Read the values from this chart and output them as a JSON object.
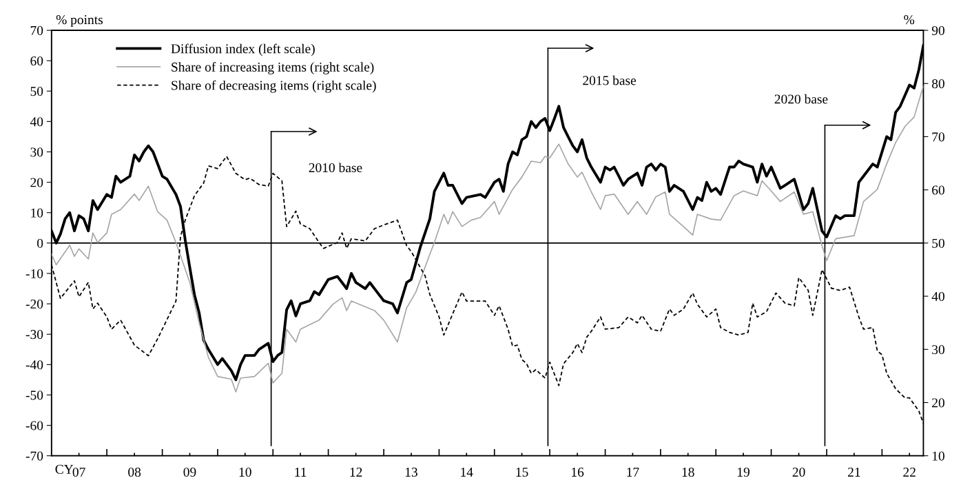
{
  "chart_data": {
    "type": "line",
    "xlabel": "CY",
    "ylabel": "% points",
    "y2label": "%",
    "xlim": [
      "2007-01",
      "2022-10"
    ],
    "xticks": [
      {
        "value": "2007-07",
        "label": "07"
      },
      {
        "value": "2008",
        "label": null
      },
      {
        "value": "2008-07",
        "label": "08"
      },
      {
        "value": "2009",
        "label": null
      },
      {
        "value": "2009-07",
        "label": "09"
      },
      {
        "value": "2010",
        "label": null
      },
      {
        "value": "2010-07",
        "label": "10"
      },
      {
        "value": "2011",
        "label": null
      },
      {
        "value": "2011-07",
        "label": "11"
      },
      {
        "value": "2012",
        "label": null
      },
      {
        "value": "2012-07",
        "label": "12"
      },
      {
        "value": "2013",
        "label": null
      },
      {
        "value": "2013-07",
        "label": "13"
      },
      {
        "value": "2014",
        "label": null
      },
      {
        "value": "2014-07",
        "label": "14"
      },
      {
        "value": "2015",
        "label": null
      },
      {
        "value": "2015-07",
        "label": "15"
      },
      {
        "value": "2016",
        "label": null
      },
      {
        "value": "2016-07",
        "label": "16"
      },
      {
        "value": "2017",
        "label": null
      },
      {
        "value": "2017-07",
        "label": "17"
      },
      {
        "value": "2018",
        "label": null
      },
      {
        "value": "2018-07",
        "label": "18"
      },
      {
        "value": "2019",
        "label": null
      },
      {
        "value": "2019-07",
        "label": "19"
      },
      {
        "value": "2020",
        "label": null
      },
      {
        "value": "2020-07",
        "label": "20"
      },
      {
        "value": "2021",
        "label": null
      },
      {
        "value": "2021-07",
        "label": "21"
      },
      {
        "value": "2022",
        "label": null
      },
      {
        "value": "2022-07",
        "label": "22"
      }
    ],
    "ylim": [
      -70,
      70
    ],
    "yticks": [
      -70,
      -60,
      -50,
      -40,
      -30,
      -20,
      -10,
      0,
      10,
      20,
      30,
      40,
      50,
      60,
      70
    ],
    "y2lim": [
      10,
      90
    ],
    "y2ticks": [
      10,
      20,
      30,
      40,
      50,
      60,
      70,
      80,
      90
    ],
    "legend": "top left",
    "ref_lines": [
      {
        "axis": "y",
        "value": 0,
        "label": null
      },
      {
        "axis": "x",
        "value": "2010-12-20",
        "label": "2010 base"
      },
      {
        "axis": "x",
        "value": "2015-12-20",
        "label": "2015 base"
      },
      {
        "axis": "x",
        "value": "2020-12-20",
        "label": "2020 base"
      }
    ],
    "series": [
      {
        "name": "Diffusion index (left scale)",
        "color": "#000000",
        "axis": "y",
        "line_style": "solid",
        "x": [
          "2007-01",
          "2007-02",
          "2007-03",
          "2007-04",
          "2007-05",
          "2007-06",
          "2007-07",
          "2007-08",
          "2007-09",
          "2007-10",
          "2007-11",
          "2008-01",
          "2008-02",
          "2008-03",
          "2008-04",
          "2008-06",
          "2008-07",
          "2008-08",
          "2008-09",
          "2008-10",
          "2008-11",
          "2009-01",
          "2009-02",
          "2009-04",
          "2009-05",
          "2009-06",
          "2009-07",
          "2009-08",
          "2009-09",
          "2009-10",
          "2009-11",
          "2010-01",
          "2010-02",
          "2010-04",
          "2010-05",
          "2010-06",
          "2010-07",
          "2010-09",
          "2010-10",
          "2010-12",
          "2011-01",
          "2011-02",
          "2011-03",
          "2011-04",
          "2011-05",
          "2011-06",
          "2011-07",
          "2011-09",
          "2011-10",
          "2011-11",
          "2012-01",
          "2012-03",
          "2012-04",
          "2012-05",
          "2012-06",
          "2012-07",
          "2012-09",
          "2012-10",
          "2012-12",
          "2013-01",
          "2013-03",
          "2013-04",
          "2013-06",
          "2013-07",
          "2013-09",
          "2013-11",
          "2013-12",
          "2014-02",
          "2014-03",
          "2014-04",
          "2014-06",
          "2014-07",
          "2014-10",
          "2014-11",
          "2015-01",
          "2015-02",
          "2015-03",
          "2015-04",
          "2015-05",
          "2015-06",
          "2015-07",
          "2015-08",
          "2015-09",
          "2015-10",
          "2015-11",
          "2015-12",
          "2016-01",
          "2016-02",
          "2016-03",
          "2016-04",
          "2016-05",
          "2016-06",
          "2016-07",
          "2016-08",
          "2016-09",
          "2016-10",
          "2016-12",
          "2017-01",
          "2017-02",
          "2017-03",
          "2017-04",
          "2017-05",
          "2017-06",
          "2017-08",
          "2017-09",
          "2017-10",
          "2017-11",
          "2017-12",
          "2018-01",
          "2018-02",
          "2018-03",
          "2018-04",
          "2018-06",
          "2018-08",
          "2018-09",
          "2018-10",
          "2018-11",
          "2018-12",
          "2019-01",
          "2019-02",
          "2019-04",
          "2019-05",
          "2019-06",
          "2019-07",
          "2019-09",
          "2019-10",
          "2019-11",
          "2019-12",
          "2020-01",
          "2020-03",
          "2020-04",
          "2020-06",
          "2020-08",
          "2020-09",
          "2020-10",
          "2020-12",
          "2021-01",
          "2021-03",
          "2021-04",
          "2021-05",
          "2021-07",
          "2021-08",
          "2021-09",
          "2021-11",
          "2021-12",
          "2022-02",
          "2022-03",
          "2022-04",
          "2022-05",
          "2022-07",
          "2022-08",
          "2022-09",
          "2022-10"
        ],
        "values": [
          4,
          0,
          3,
          8,
          10,
          4,
          9,
          8,
          4,
          14,
          11,
          16,
          15,
          22,
          20,
          22,
          29,
          27,
          30,
          32,
          30,
          22,
          21,
          16,
          12,
          1,
          -8,
          -17,
          -23,
          -32,
          -35,
          -40,
          -38,
          -42,
          -45,
          -40,
          -37,
          -37,
          -35,
          -33,
          -39,
          -37,
          -36,
          -22,
          -19,
          -24,
          -20,
          -19,
          -16,
          -17,
          -12,
          -11,
          -13,
          -15,
          -10,
          -13,
          -15,
          -13,
          -17,
          -19,
          -20,
          -23,
          -13,
          -12,
          -1,
          8,
          17,
          23,
          19,
          19,
          13,
          15,
          16,
          15,
          20,
          21,
          17,
          26,
          30,
          29,
          34,
          35,
          40,
          38,
          40,
          41,
          37,
          41,
          45,
          38,
          35,
          32,
          30,
          34,
          28,
          25,
          20,
          25,
          24,
          25,
          22,
          19,
          21,
          23,
          19,
          25,
          26,
          24,
          26,
          25,
          17,
          19,
          17,
          11,
          15,
          14,
          20,
          17,
          18,
          16,
          25,
          25,
          27,
          26,
          25,
          20,
          26,
          22,
          25,
          18,
          19,
          21,
          11,
          13,
          18,
          4,
          2,
          9,
          8,
          9,
          9,
          20,
          22,
          26,
          25,
          35,
          34,
          43,
          45,
          52,
          51,
          57,
          65
        ]
      },
      {
        "name": "Share of increasing items (right scale)",
        "color": "#a6a6a6",
        "axis": "y2",
        "line_style": "solid",
        "x": [
          "2007-01",
          "2007-02",
          "2007-05",
          "2007-06",
          "2007-07",
          "2007-09",
          "2007-10",
          "2007-11",
          "2008-01",
          "2008-02",
          "2008-04",
          "2008-07",
          "2008-08",
          "2008-10",
          "2008-12",
          "2009-02",
          "2009-04",
          "2009-07",
          "2009-09",
          "2009-11",
          "2010-01",
          "2010-04",
          "2010-05",
          "2010-06",
          "2010-09",
          "2010-12",
          "2011-01",
          "2011-03",
          "2011-04",
          "2011-06",
          "2011-07",
          "2011-11",
          "2012-02",
          "2012-04",
          "2012-05",
          "2012-06",
          "2012-11",
          "2013-01",
          "2013-04",
          "2013-06",
          "2013-08",
          "2013-11",
          "2013-12",
          "2014-02",
          "2014-03",
          "2014-04",
          "2014-06",
          "2014-08",
          "2014-10",
          "2015-01",
          "2015-02",
          "2015-05",
          "2015-07",
          "2015-09",
          "2015-11",
          "2015-12",
          "2016-01",
          "2016-03",
          "2016-05",
          "2016-07",
          "2016-08",
          "2016-10",
          "2016-12",
          "2017-01",
          "2017-03",
          "2017-06",
          "2017-08",
          "2017-10",
          "2017-12",
          "2018-02",
          "2018-03",
          "2018-06",
          "2018-08",
          "2018-09",
          "2018-12",
          "2019-02",
          "2019-05",
          "2019-07",
          "2019-10",
          "2019-11",
          "2020-01",
          "2020-03",
          "2020-06",
          "2020-08",
          "2020-10",
          "2020-12",
          "2021-01",
          "2021-03",
          "2021-07",
          "2021-09",
          "2021-12",
          "2022-02",
          "2022-04",
          "2022-06",
          "2022-08",
          "2022-09",
          "2022-10"
        ],
        "values": [
          47.9,
          45.9,
          49.6,
          47.5,
          48.9,
          47,
          51.9,
          50.1,
          51.9,
          55.4,
          56.3,
          59.2,
          58,
          60.7,
          55.9,
          54.3,
          50.1,
          42.6,
          35,
          28.5,
          24.9,
          24.4,
          22,
          24.6,
          24.9,
          27.4,
          23.7,
          25.5,
          33.8,
          31.4,
          33.8,
          35.5,
          38.5,
          39.7,
          37.3,
          39.1,
          37.3,
          35.5,
          31.4,
          37.8,
          40.8,
          47.9,
          50.1,
          55.4,
          53.6,
          55.9,
          53.1,
          54.3,
          54.8,
          57.8,
          55.4,
          60.1,
          62.4,
          65.4,
          65.1,
          66.3,
          66,
          68.6,
          64.9,
          62.4,
          63.3,
          59.6,
          56.3,
          58.9,
          59.2,
          55.4,
          57.8,
          55.4,
          58.7,
          59.6,
          55.4,
          53.1,
          51.5,
          55.4,
          54.5,
          54.3,
          58.9,
          59.8,
          58.9,
          61.7,
          59.8,
          57.8,
          59.6,
          55.4,
          55.9,
          49.5,
          46.7,
          50.8,
          51.4,
          57.8,
          60.1,
          64.9,
          68.9,
          71.9,
          73.7,
          76.7,
          79.5
        ]
      },
      {
        "name": "Share of decreasing items (right scale)",
        "color": "#000000",
        "axis": "y2",
        "line_style": "dashed",
        "x": [
          "2007-01",
          "2007-03",
          "2007-06",
          "2007-07",
          "2007-09",
          "2007-10",
          "2007-11",
          "2008-01",
          "2008-02",
          "2008-04",
          "2008-07",
          "2008-10",
          "2008-12",
          "2009-01",
          "2009-04",
          "2009-05",
          "2009-06",
          "2009-08",
          "2009-10",
          "2009-11",
          "2010-01",
          "2010-03",
          "2010-05",
          "2010-07",
          "2010-08",
          "2010-10",
          "2010-12",
          "2011-01",
          "2011-03",
          "2011-04",
          "2011-06",
          "2011-07",
          "2011-09",
          "2011-11",
          "2011-12",
          "2012-03",
          "2012-04",
          "2012-05",
          "2012-06",
          "2012-09",
          "2012-11",
          "2013-01",
          "2013-04",
          "2013-06",
          "2013-07",
          "2013-10",
          "2013-11",
          "2014-01",
          "2014-02",
          "2014-04",
          "2014-06",
          "2014-07",
          "2014-10",
          "2014-11",
          "2015-01",
          "2015-02",
          "2015-04",
          "2015-05",
          "2015-06",
          "2015-07",
          "2015-08",
          "2015-09",
          "2015-10",
          "2015-12",
          "2016-01",
          "2016-03",
          "2016-04",
          "2016-06",
          "2016-07",
          "2016-08",
          "2016-09",
          "2016-10",
          "2016-12",
          "2017-01",
          "2017-04",
          "2017-06",
          "2017-08",
          "2017-09",
          "2017-11",
          "2018-01",
          "2018-03",
          "2018-04",
          "2018-06",
          "2018-08",
          "2018-09",
          "2018-11",
          "2019-01",
          "2019-02",
          "2019-04",
          "2019-06",
          "2019-08",
          "2019-09",
          "2019-10",
          "2019-12",
          "2020-02",
          "2020-04",
          "2020-06",
          "2020-07",
          "2020-09",
          "2020-10",
          "2020-12",
          "2021-02",
          "2021-04",
          "2021-06",
          "2021-08",
          "2021-09",
          "2021-11",
          "2021-12",
          "2022-01",
          "2022-02",
          "2022-04",
          "2022-06",
          "2022-07",
          "2022-09",
          "2022-10"
        ],
        "values": [
          45.9,
          39.6,
          42.9,
          39.9,
          42.6,
          37.6,
          38.7,
          36.1,
          33.8,
          35.5,
          30.8,
          28.8,
          32,
          33.8,
          39.1,
          51.2,
          54.3,
          58.9,
          61.3,
          64.5,
          64,
          66.3,
          63.1,
          61.9,
          62.2,
          61,
          60.7,
          63.1,
          61.7,
          53.1,
          56,
          53.6,
          52.7,
          50.1,
          49,
          50.1,
          51.9,
          49,
          50.8,
          50.4,
          52.7,
          53.4,
          54.3,
          49.5,
          48.4,
          43.8,
          40.3,
          36.1,
          32.7,
          36.7,
          40.8,
          39.1,
          39.1,
          39.1,
          36.4,
          38.2,
          33.8,
          30.6,
          30.8,
          28.1,
          27.3,
          25.5,
          26.2,
          24.6,
          27.6,
          23.2,
          27.3,
          29.4,
          31.1,
          29.4,
          32.3,
          33.4,
          36.1,
          33.8,
          34.1,
          36.1,
          35,
          36.4,
          33.8,
          33.4,
          37.6,
          36.4,
          37.6,
          40.6,
          38.5,
          36.1,
          37.6,
          34.1,
          33.2,
          32.7,
          33.2,
          38.7,
          36.1,
          37.1,
          40.6,
          38.7,
          38.2,
          43.5,
          41.1,
          36.4,
          45,
          41.5,
          41.1,
          41.7,
          36.1,
          33.8,
          34.1,
          29.7,
          29,
          25.5,
          22.6,
          20.9,
          20.9,
          18.4,
          16.1
        ]
      }
    ]
  }
}
